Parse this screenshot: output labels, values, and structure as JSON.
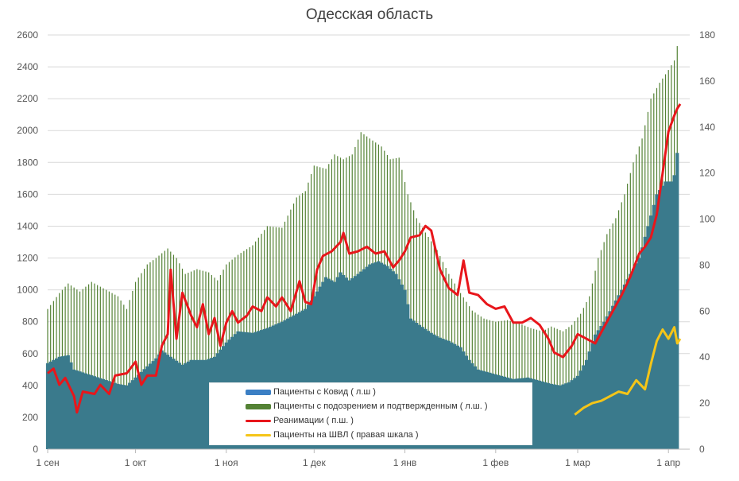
{
  "chart_data": {
    "type": "bar+line",
    "title": "Одесская область",
    "y_left": {
      "min": 0,
      "max": 2600,
      "ticks": [
        "0",
        "200",
        "400",
        "600",
        "800",
        "1000",
        "1200",
        "1400",
        "1600",
        "1800",
        "2000",
        "2200",
        "2400",
        "2600"
      ]
    },
    "y_right": {
      "min": 0,
      "max": 180,
      "ticks": [
        "0",
        "20",
        "40",
        "60",
        "80",
        "100",
        "120",
        "140",
        "160",
        "180"
      ]
    },
    "x_ticks": [
      "1 сен",
      "1 окт",
      "1 ноя",
      "1 дек",
      "1 янв",
      "1 фев",
      "1 мар",
      "1 апр"
    ],
    "grid": true,
    "legend_position": "bottom-center",
    "series": [
      {
        "name": "Пациенты с Ковид ( л.ш )",
        "axis": "left",
        "type": "area",
        "color": "#3a7a8c",
        "points": [
          [
            "09-01",
            540
          ],
          [
            "09-05",
            580
          ],
          [
            "09-08",
            590
          ],
          [
            "09-10",
            500
          ],
          [
            "09-15",
            470
          ],
          [
            "09-20",
            440
          ],
          [
            "09-25",
            410
          ],
          [
            "09-28",
            400
          ],
          [
            "10-01",
            450
          ],
          [
            "10-05",
            520
          ],
          [
            "10-08",
            570
          ],
          [
            "10-10",
            620
          ],
          [
            "10-13",
            580
          ],
          [
            "10-17",
            530
          ],
          [
            "10-20",
            560
          ],
          [
            "10-25",
            560
          ],
          [
            "10-28",
            580
          ],
          [
            "11-01",
            670
          ],
          [
            "11-05",
            740
          ],
          [
            "11-10",
            730
          ],
          [
            "11-15",
            760
          ],
          [
            "11-20",
            800
          ],
          [
            "11-25",
            850
          ],
          [
            "11-28",
            880
          ],
          [
            "12-01",
            960
          ],
          [
            "12-05",
            1080
          ],
          [
            "12-08",
            1050
          ],
          [
            "12-10",
            1110
          ],
          [
            "12-13",
            1060
          ],
          [
            "12-16",
            1100
          ],
          [
            "12-20",
            1160
          ],
          [
            "12-23",
            1180
          ],
          [
            "12-26",
            1150
          ],
          [
            "12-29",
            1100
          ],
          [
            "01-01",
            1000
          ],
          [
            "01-03",
            820
          ],
          [
            "01-06",
            780
          ],
          [
            "01-10",
            730
          ],
          [
            "01-13",
            700
          ],
          [
            "01-16",
            680
          ],
          [
            "01-20",
            640
          ],
          [
            "01-23",
            560
          ],
          [
            "01-26",
            500
          ],
          [
            "01-30",
            480
          ],
          [
            "02-03",
            460
          ],
          [
            "02-07",
            440
          ],
          [
            "02-12",
            450
          ],
          [
            "02-16",
            430
          ],
          [
            "02-20",
            410
          ],
          [
            "02-23",
            400
          ],
          [
            "02-26",
            420
          ],
          [
            "03-01",
            460
          ],
          [
            "03-04",
            560
          ],
          [
            "03-07",
            720
          ],
          [
            "03-10",
            800
          ],
          [
            "03-13",
            900
          ],
          [
            "03-16",
            1000
          ],
          [
            "03-19",
            1100
          ],
          [
            "03-22",
            1200
          ],
          [
            "03-25",
            1400
          ],
          [
            "03-28",
            1600
          ],
          [
            "03-31",
            1680
          ],
          [
            "04-02",
            1680
          ],
          [
            "04-03",
            1720
          ],
          [
            "04-04",
            1860
          ]
        ]
      },
      {
        "name": "Пациенты с подозрением и подтвержденным ( л.ш. )",
        "axis": "left",
        "type": "bar",
        "color": "#548235",
        "points": [
          [
            "09-01",
            880
          ],
          [
            "09-05",
            980
          ],
          [
            "09-08",
            1040
          ],
          [
            "09-12",
            990
          ],
          [
            "09-16",
            1050
          ],
          [
            "09-20",
            1010
          ],
          [
            "09-25",
            960
          ],
          [
            "09-28",
            880
          ],
          [
            "10-01",
            1050
          ],
          [
            "10-05",
            1160
          ],
          [
            "10-08",
            1200
          ],
          [
            "10-12",
            1260
          ],
          [
            "10-15",
            1200
          ],
          [
            "10-18",
            1100
          ],
          [
            "10-22",
            1130
          ],
          [
            "10-26",
            1110
          ],
          [
            "10-29",
            1060
          ],
          [
            "11-01",
            1160
          ],
          [
            "11-05",
            1220
          ],
          [
            "11-10",
            1280
          ],
          [
            "11-15",
            1400
          ],
          [
            "11-20",
            1390
          ],
          [
            "11-25",
            1580
          ],
          [
            "11-28",
            1620
          ],
          [
            "12-01",
            1780
          ],
          [
            "12-05",
            1760
          ],
          [
            "12-08",
            1850
          ],
          [
            "12-11",
            1820
          ],
          [
            "12-14",
            1850
          ],
          [
            "12-17",
            1990
          ],
          [
            "12-20",
            1950
          ],
          [
            "12-24",
            1900
          ],
          [
            "12-27",
            1820
          ],
          [
            "12-30",
            1830
          ],
          [
            "01-02",
            1600
          ],
          [
            "01-05",
            1450
          ],
          [
            "01-08",
            1360
          ],
          [
            "01-12",
            1250
          ],
          [
            "01-16",
            1100
          ],
          [
            "01-20",
            980
          ],
          [
            "01-24",
            870
          ],
          [
            "01-28",
            820
          ],
          [
            "02-01",
            800
          ],
          [
            "02-05",
            810
          ],
          [
            "02-09",
            790
          ],
          [
            "02-13",
            760
          ],
          [
            "02-17",
            740
          ],
          [
            "02-20",
            770
          ],
          [
            "02-24",
            740
          ],
          [
            "02-27",
            780
          ],
          [
            "03-02",
            850
          ],
          [
            "03-05",
            960
          ],
          [
            "03-08",
            1200
          ],
          [
            "03-11",
            1350
          ],
          [
            "03-14",
            1450
          ],
          [
            "03-17",
            1600
          ],
          [
            "03-20",
            1800
          ],
          [
            "03-23",
            1950
          ],
          [
            "03-26",
            2200
          ],
          [
            "03-29",
            2300
          ],
          [
            "04-01",
            2380
          ],
          [
            "04-03",
            2440
          ],
          [
            "04-04",
            2530
          ]
        ]
      },
      {
        "name": "Реанимации ( п.ш. )",
        "axis": "right",
        "type": "line",
        "color": "#e8161b",
        "points": [
          [
            "09-01",
            33
          ],
          [
            "09-03",
            35
          ],
          [
            "09-05",
            28
          ],
          [
            "09-07",
            31
          ],
          [
            "09-10",
            23
          ],
          [
            "09-11",
            16
          ],
          [
            "09-13",
            25
          ],
          [
            "09-17",
            24
          ],
          [
            "09-19",
            28
          ],
          [
            "09-22",
            24
          ],
          [
            "09-24",
            32
          ],
          [
            "09-28",
            33
          ],
          [
            "10-01",
            38
          ],
          [
            "10-03",
            28
          ],
          [
            "10-05",
            32
          ],
          [
            "10-08",
            32
          ],
          [
            "10-10",
            45
          ],
          [
            "10-12",
            50
          ],
          [
            "10-13",
            78
          ],
          [
            "10-15",
            48
          ],
          [
            "10-17",
            68
          ],
          [
            "10-20",
            58
          ],
          [
            "10-22",
            53
          ],
          [
            "10-24",
            63
          ],
          [
            "10-26",
            50
          ],
          [
            "10-28",
            57
          ],
          [
            "10-30",
            45
          ],
          [
            "11-01",
            55
          ],
          [
            "11-03",
            60
          ],
          [
            "11-05",
            55
          ],
          [
            "11-08",
            58
          ],
          [
            "11-10",
            62
          ],
          [
            "11-13",
            60
          ],
          [
            "11-15",
            66
          ],
          [
            "11-18",
            62
          ],
          [
            "11-20",
            66
          ],
          [
            "11-23",
            60
          ],
          [
            "11-26",
            73
          ],
          [
            "11-28",
            64
          ],
          [
            "11-30",
            63
          ],
          [
            "12-02",
            78
          ],
          [
            "12-04",
            84
          ],
          [
            "12-07",
            86
          ],
          [
            "12-10",
            90
          ],
          [
            "12-11",
            94
          ],
          [
            "12-13",
            85
          ],
          [
            "12-16",
            86
          ],
          [
            "12-19",
            88
          ],
          [
            "12-22",
            85
          ],
          [
            "12-25",
            86
          ],
          [
            "12-28",
            79
          ],
          [
            "12-30",
            82
          ],
          [
            "01-01",
            86
          ],
          [
            "01-03",
            92
          ],
          [
            "01-06",
            93
          ],
          [
            "01-08",
            97
          ],
          [
            "01-10",
            95
          ],
          [
            "01-13",
            78
          ],
          [
            "01-16",
            70
          ],
          [
            "01-19",
            67
          ],
          [
            "01-21",
            82
          ],
          [
            "01-23",
            68
          ],
          [
            "01-26",
            67
          ],
          [
            "01-29",
            63
          ],
          [
            "02-01",
            61
          ],
          [
            "02-04",
            62
          ],
          [
            "02-07",
            55
          ],
          [
            "02-10",
            55
          ],
          [
            "02-13",
            57
          ],
          [
            "02-16",
            54
          ],
          [
            "02-19",
            48
          ],
          [
            "02-21",
            42
          ],
          [
            "02-24",
            40
          ],
          [
            "02-27",
            45
          ],
          [
            "03-01",
            50
          ],
          [
            "03-04",
            48
          ],
          [
            "03-07",
            46
          ],
          [
            "03-10",
            53
          ],
          [
            "03-13",
            60
          ],
          [
            "03-16",
            67
          ],
          [
            "03-19",
            75
          ],
          [
            "03-22",
            85
          ],
          [
            "03-24",
            88
          ],
          [
            "03-26",
            92
          ],
          [
            "03-28",
            102
          ],
          [
            "03-30",
            120
          ],
          [
            "04-01",
            138
          ],
          [
            "04-03",
            145
          ],
          [
            "04-04",
            148
          ],
          [
            "04-05",
            150
          ]
        ]
      },
      {
        "name": "Пациенты на ШВЛ ( правая шкала )",
        "axis": "right",
        "type": "line",
        "color": "#f5c518",
        "points": [
          [
            "02-28",
            15
          ],
          [
            "03-03",
            18
          ],
          [
            "03-06",
            20
          ],
          [
            "03-09",
            21
          ],
          [
            "03-12",
            23
          ],
          [
            "03-15",
            25
          ],
          [
            "03-18",
            24
          ],
          [
            "03-21",
            30
          ],
          [
            "03-24",
            26
          ],
          [
            "03-26",
            37
          ],
          [
            "03-28",
            47
          ],
          [
            "03-30",
            52
          ],
          [
            "04-01",
            48
          ],
          [
            "04-03",
            53
          ],
          [
            "04-04",
            46
          ],
          [
            "04-05",
            48
          ]
        ]
      }
    ]
  }
}
